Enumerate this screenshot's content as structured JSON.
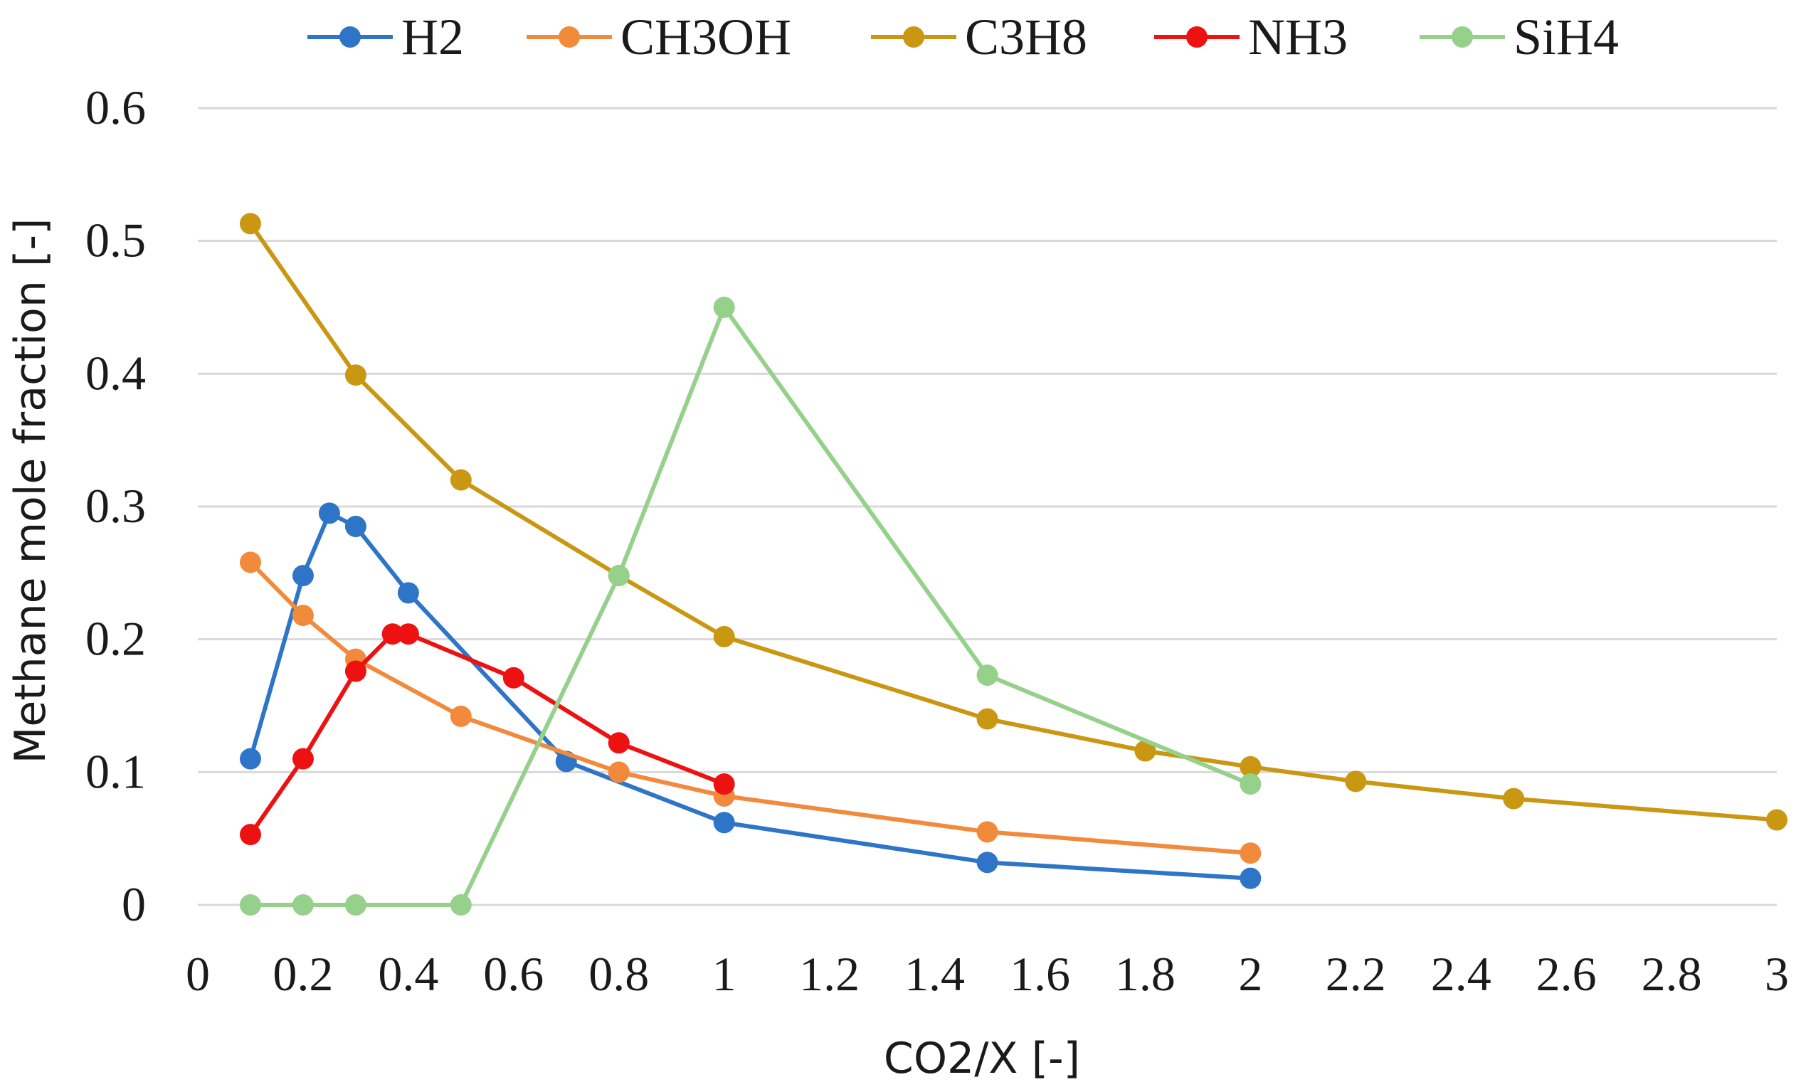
{
  "chart_data": {
    "type": "scatter",
    "mode": "lines+markers",
    "title": "",
    "xlabel": "CO2/X [-]",
    "ylabel": "Methane mole fraction [-]",
    "xlim": [
      0,
      3
    ],
    "ylim": [
      0,
      0.6
    ],
    "xticks": [
      0,
      0.2,
      0.4,
      0.6,
      0.8,
      1,
      1.2,
      1.4,
      1.6,
      1.8,
      2,
      2.2,
      2.4,
      2.6,
      2.8,
      3
    ],
    "xtick_labels": [
      "0",
      "0.2",
      "0.4",
      "0.6",
      "0.8",
      "1",
      "1.2",
      "1.4",
      "1.6",
      "1.8",
      "2",
      "2.2",
      "2.4",
      "2.6",
      "2.8",
      "3"
    ],
    "yticks": [
      0,
      0.1,
      0.2,
      0.3,
      0.4,
      0.5,
      0.6
    ],
    "ytick_labels": [
      "0",
      "0.1",
      "0.2",
      "0.3",
      "0.4",
      "0.5",
      "0.6"
    ],
    "grid": true,
    "legend_position": "top",
    "series": [
      {
        "name": "H2",
        "color": "#2e75c7",
        "x": [
          0.1,
          0.2,
          0.25,
          0.3,
          0.4,
          0.7,
          1,
          1.5,
          2
        ],
        "y": [
          0.11,
          0.248,
          0.295,
          0.285,
          0.235,
          0.108,
          0.062,
          0.032,
          0.02
        ]
      },
      {
        "name": "CH3OH",
        "color": "#f28a3c",
        "x": [
          0.1,
          0.2,
          0.3,
          0.5,
          0.8,
          1,
          1.5,
          2
        ],
        "y": [
          0.258,
          0.218,
          0.185,
          0.142,
          0.1,
          0.082,
          0.055,
          0.039
        ]
      },
      {
        "name": "C3H8",
        "color": "#c99712",
        "x": [
          0.1,
          0.3,
          0.5,
          0.8,
          1,
          1.5,
          1.8,
          2,
          2.2,
          2.5,
          3
        ],
        "y": [
          0.513,
          0.399,
          0.32,
          0.248,
          0.202,
          0.14,
          0.116,
          0.104,
          0.093,
          0.08,
          0.064
        ]
      },
      {
        "name": "NH3",
        "color": "#ee1111",
        "x": [
          0.1,
          0.2,
          0.3,
          0.37,
          0.4,
          0.6,
          0.8,
          1
        ],
        "y": [
          0.053,
          0.11,
          0.176,
          0.204,
          0.204,
          0.171,
          0.122,
          0.091
        ]
      },
      {
        "name": "SiH4",
        "color": "#96d18c",
        "x": [
          0.1,
          0.2,
          0.3,
          0.5,
          0.8,
          1,
          1.5,
          2
        ],
        "y": [
          0,
          0,
          0,
          0,
          0.248,
          0.45,
          0.173,
          0.091
        ]
      }
    ]
  }
}
